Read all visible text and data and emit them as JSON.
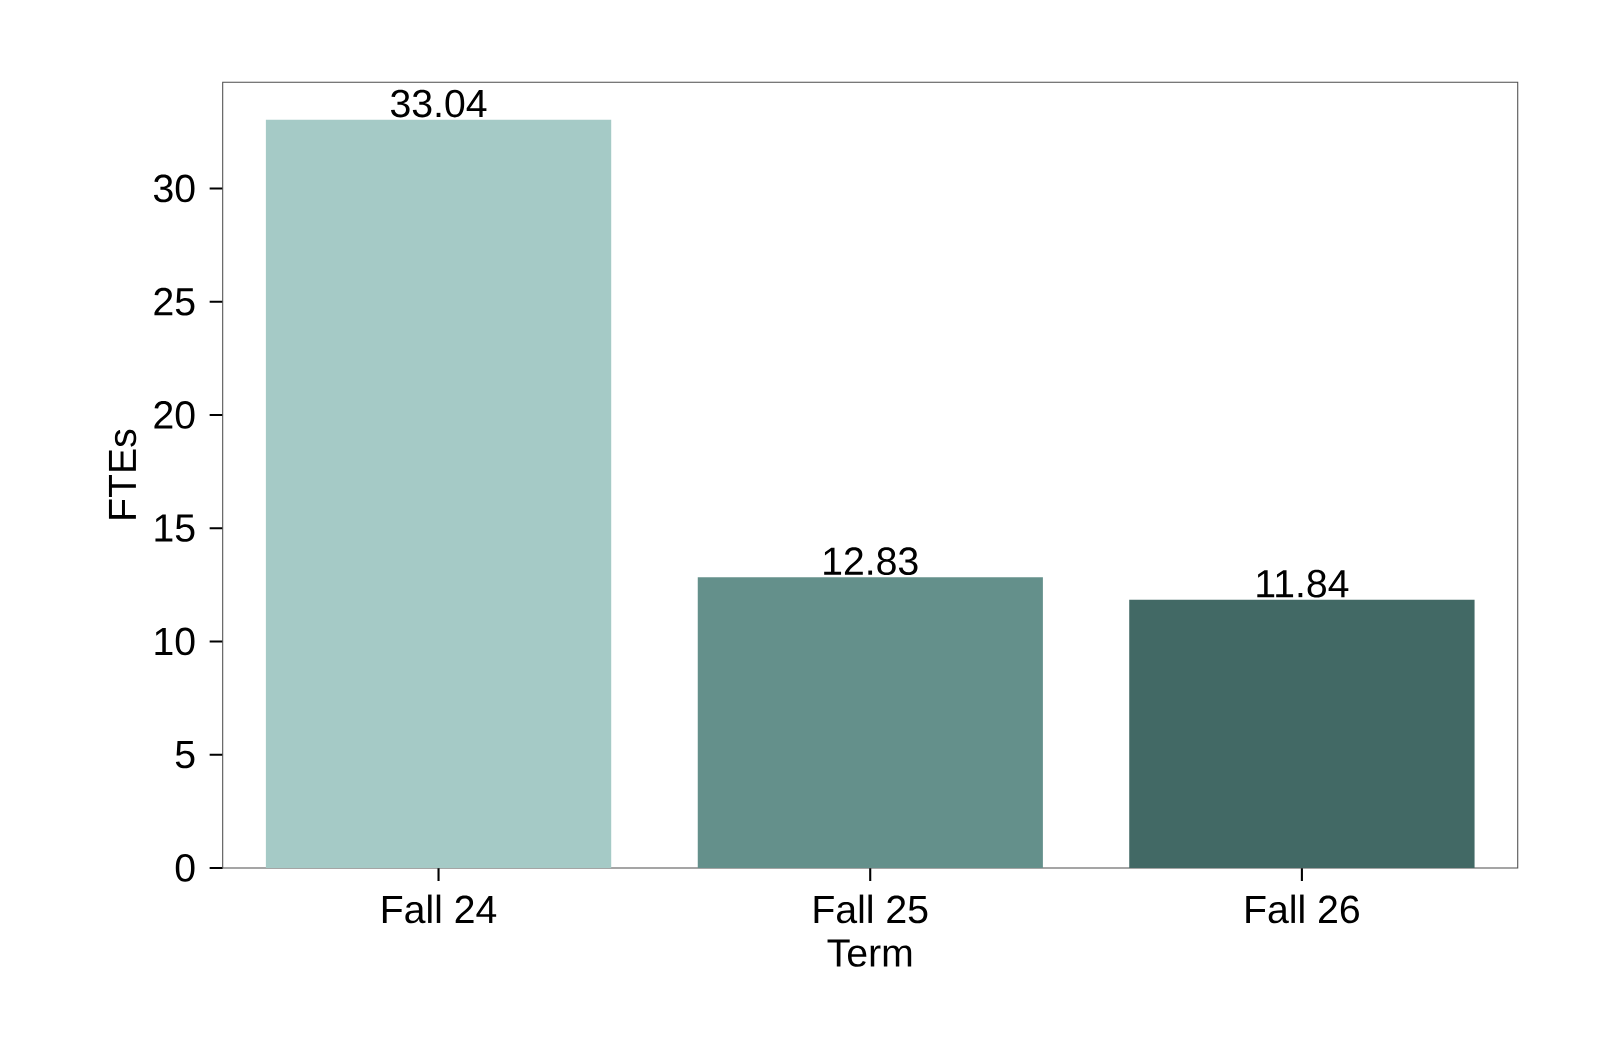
{
  "chart_data": {
    "type": "bar",
    "xlabel": "Term",
    "ylabel": "FTEs",
    "categories": [
      "Fall 24",
      "Fall 25",
      "Fall 26"
    ],
    "values": [
      33.04,
      12.83,
      11.84
    ],
    "colors": [
      "#a5cac6",
      "#64908b",
      "#426965"
    ],
    "ylim": [
      0,
      34.69
    ],
    "yticks": [
      0,
      5,
      10,
      15,
      20,
      25,
      30
    ],
    "data_labels": true
  }
}
